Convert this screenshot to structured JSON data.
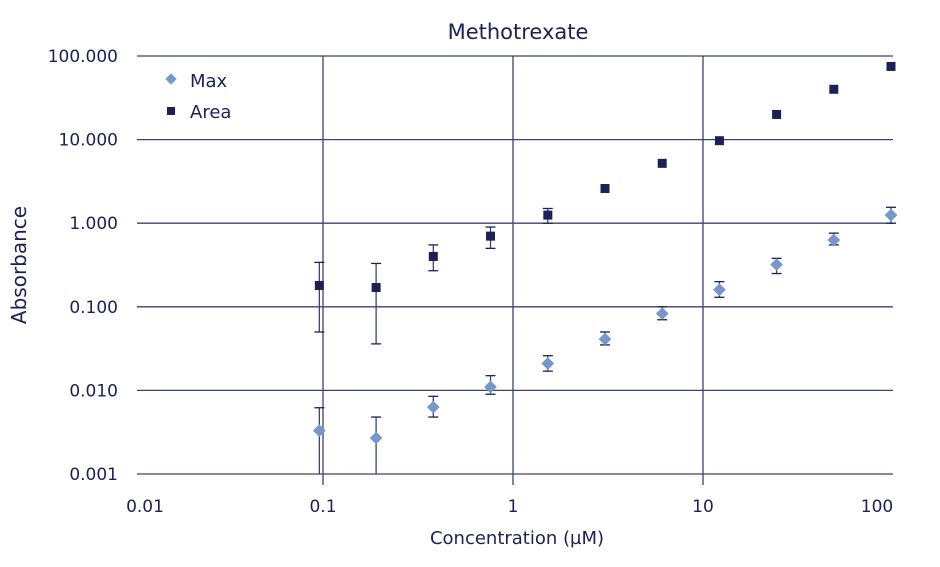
{
  "chart_data": {
    "type": "scatter",
    "title": "Methotrexate",
    "xlabel": "Concentration (µM)",
    "ylabel": "Absorbance",
    "x_scale": "log",
    "y_scale": "log",
    "xlim": [
      0.01,
      100
    ],
    "ylim": [
      0.001,
      100
    ],
    "x_ticks": [
      "0.01",
      "0.1",
      "1",
      "10",
      "100"
    ],
    "x_tick_values": [
      0.01,
      0.1,
      1,
      10,
      100
    ],
    "y_ticks": [
      "0.001",
      "0.010",
      "0.100",
      "1.000",
      "10.000",
      "100.000"
    ],
    "y_tick_values": [
      0.001,
      0.01,
      0.1,
      1,
      10,
      100
    ],
    "grid": true,
    "legend_position": "top-left",
    "x": [
      0.098,
      0.195,
      0.39,
      0.78,
      1.5625,
      3.125,
      6.25,
      12.5,
      25,
      50,
      100
    ],
    "series": [
      {
        "name": "Max",
        "marker": "diamond",
        "color": "#7497cc",
        "values": [
          0.0033,
          0.0027,
          0.0063,
          0.011,
          0.021,
          0.041,
          0.083,
          0.16,
          0.32,
          0.63,
          1.25
        ],
        "error_low": [
          0.001,
          0.001,
          0.0048,
          0.009,
          0.017,
          0.035,
          0.07,
          0.13,
          0.25,
          0.55,
          1.0
        ],
        "error_high": [
          0.0062,
          0.0048,
          0.0085,
          0.015,
          0.026,
          0.05,
          0.1,
          0.2,
          0.38,
          0.76,
          1.55
        ]
      },
      {
        "name": "Area",
        "marker": "square",
        "color": "#1b2155",
        "values": [
          0.18,
          0.17,
          0.4,
          0.7,
          1.25,
          2.6,
          5.2,
          9.7,
          20,
          40,
          75
        ],
        "error_low": [
          0.05,
          0.036,
          0.27,
          0.5,
          1.0,
          null,
          null,
          null,
          null,
          null,
          null
        ],
        "error_high": [
          0.34,
          0.33,
          0.55,
          0.9,
          1.5,
          null,
          null,
          null,
          null,
          null,
          null
        ]
      }
    ]
  }
}
